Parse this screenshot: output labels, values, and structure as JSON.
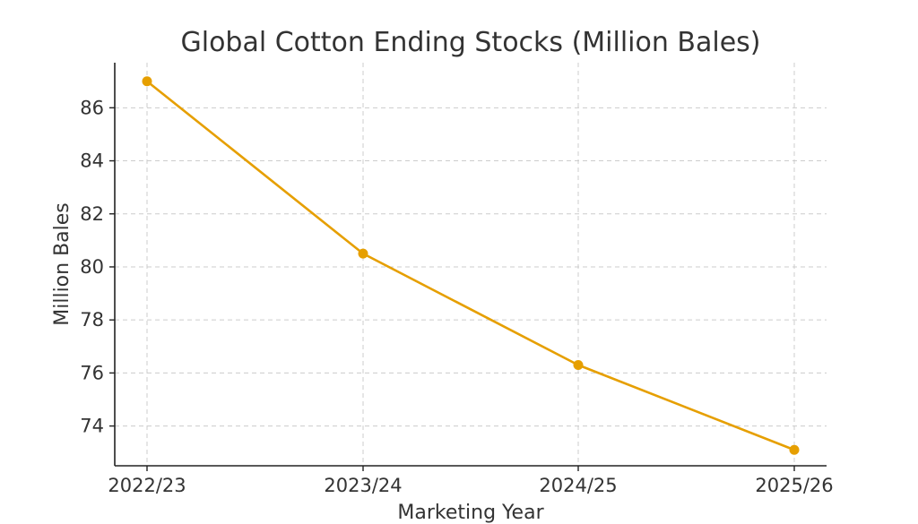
{
  "chart_data": {
    "type": "line",
    "title": "Global Cotton Ending Stocks (Million Bales)",
    "xlabel": "Marketing Year",
    "ylabel": "Million Bales",
    "categories": [
      "2022/23",
      "2023/24",
      "2024/25",
      "2025/26"
    ],
    "series": [
      {
        "values": [
          87.0,
          80.5,
          76.3,
          73.1
        ]
      }
    ],
    "yticks": [
      74,
      76,
      78,
      80,
      82,
      84,
      86
    ],
    "ylim": [
      72.5,
      87.7
    ],
    "grid": true,
    "line_color": "#E69F00"
  }
}
